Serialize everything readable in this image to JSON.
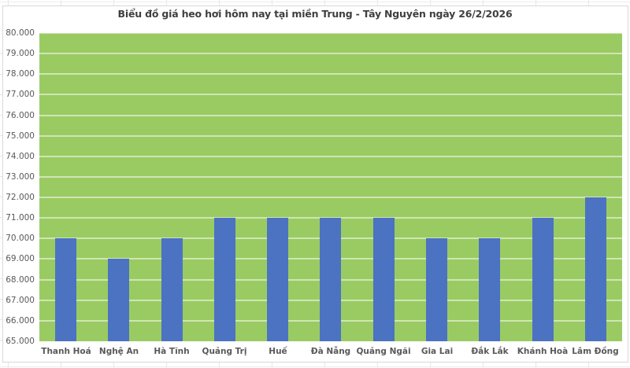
{
  "chart_data": {
    "type": "bar",
    "title": "Biểu đồ giá heo hơi hôm nay tại miền Trung - Tây Nguyên ngày 26/2/2026",
    "categories": [
      "Thanh Hoá",
      "Nghệ An",
      "Hà Tĩnh",
      "Quảng Trị",
      "Huế",
      "Đà Nẵng",
      "Quảng Ngãi",
      "Gia Lai",
      "Đắk Lắk",
      "Khánh Hoà",
      "Lâm Đồng"
    ],
    "values": [
      70000,
      69000,
      70000,
      71000,
      71000,
      71000,
      71000,
      70000,
      70000,
      71000,
      72000
    ],
    "ylim": [
      65000,
      80000
    ],
    "ytick_step": 1000,
    "ytick_labels": [
      "80.000",
      "79.000",
      "78.000",
      "77.000",
      "76.000",
      "75.000",
      "74.000",
      "73.000",
      "72.000",
      "71.000",
      "70.000",
      "69.000",
      "68.000",
      "67.000",
      "66.000",
      "65.000"
    ],
    "grid": true,
    "legend": false,
    "colors": {
      "bar": "#4c72c2",
      "plot_background": "#9acb62",
      "gridline": "rgba(255,255,255,0.52)",
      "title_text": "#3f3f3f",
      "axis_text": "#595959",
      "frame_border": "#d9d9d9"
    }
  }
}
